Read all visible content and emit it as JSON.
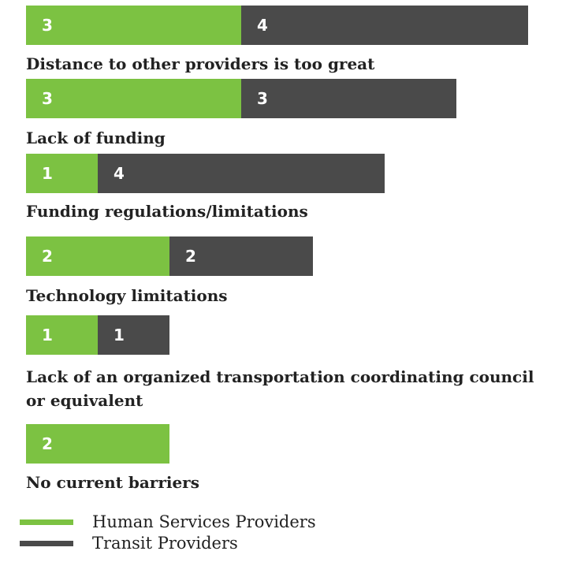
{
  "chart_data": {
    "type": "bar",
    "orientation": "horizontal",
    "stacked": true,
    "categories": [
      "Distance to other providers is too great",
      "Lack of funding",
      "Funding regulations/limitations",
      "Technology limitations",
      "Lack of an organized transportation coordinating council or equivalent",
      "No current barriers"
    ],
    "series": [
      {
        "name": "Human Services Providers",
        "color": "#7cc242",
        "values": [
          3,
          3,
          1,
          2,
          1,
          2
        ]
      },
      {
        "name": "Transit Providers",
        "color": "#4a4a4a",
        "values": [
          4,
          3,
          4,
          2,
          1,
          null
        ]
      }
    ]
  }
}
